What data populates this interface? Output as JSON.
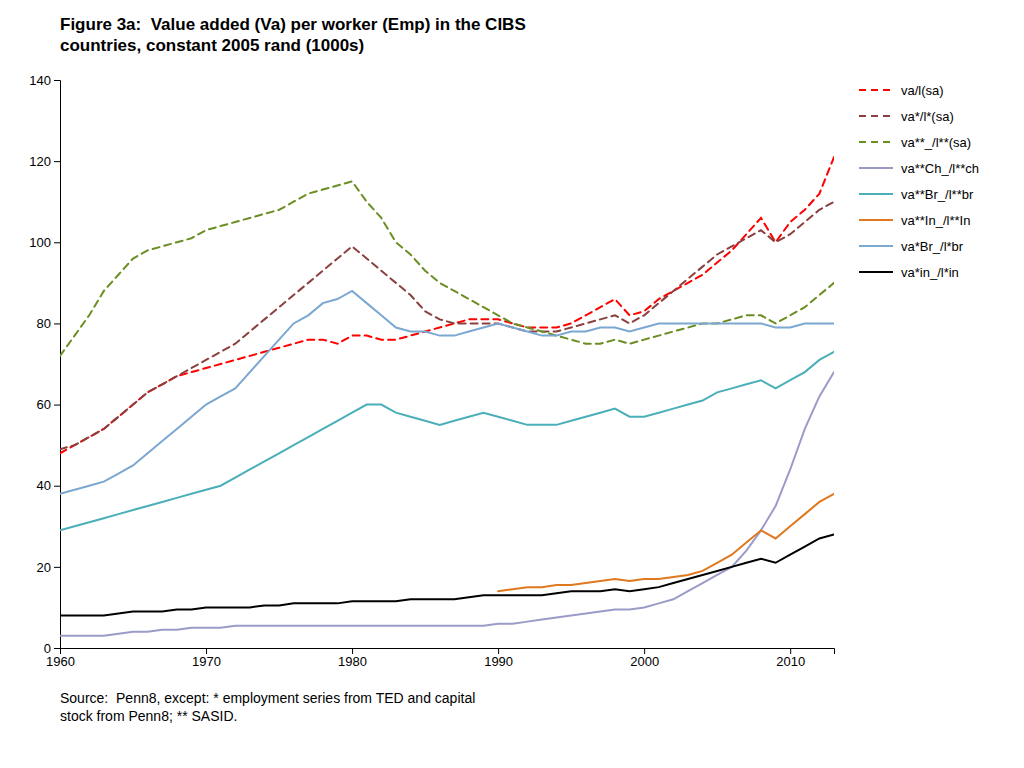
{
  "chart_data": {
    "type": "line",
    "title": "Figure 3a:  Value added (Va) per worker (Emp) in the CIBS\ncountries, constant 2005 rand (1000s)",
    "annotations": [
      "Source:  Penn8, except: * employment series from TED and capital\nstock from Penn8; ** SASID."
    ],
    "x": [
      1960,
      1961,
      1962,
      1963,
      1964,
      1965,
      1966,
      1967,
      1968,
      1969,
      1970,
      1971,
      1972,
      1973,
      1974,
      1975,
      1976,
      1977,
      1978,
      1979,
      1980,
      1981,
      1982,
      1983,
      1984,
      1985,
      1986,
      1987,
      1988,
      1989,
      1990,
      1991,
      1992,
      1993,
      1994,
      1995,
      1996,
      1997,
      1998,
      1999,
      2000,
      2001,
      2002,
      2003,
      2004,
      2005,
      2006,
      2007,
      2008,
      2009,
      2010,
      2011,
      2012,
      2013
    ],
    "series": [
      {
        "name": "va/l(sa)",
        "color": "#FF0000",
        "line_style": "dashed",
        "values": [
          48,
          50,
          52,
          54,
          57,
          60,
          63,
          65,
          67,
          68,
          69,
          70,
          71,
          72,
          73,
          74,
          75,
          76,
          76,
          75,
          77,
          77,
          76,
          76,
          77,
          78,
          79,
          80,
          81,
          81,
          81,
          80,
          79,
          79,
          79,
          80,
          82,
          84,
          86,
          82,
          83,
          86,
          88,
          90,
          92,
          95,
          98,
          102,
          106,
          100,
          105,
          108,
          112,
          121
        ]
      },
      {
        "name": "va*/l*(sa)",
        "color": "#8B4040",
        "line_style": "dashed",
        "values": [
          49,
          50,
          52,
          54,
          57,
          60,
          63,
          65,
          67,
          69,
          71,
          73,
          75,
          78,
          81,
          84,
          87,
          90,
          93,
          96,
          99,
          96,
          93,
          90,
          87,
          83,
          81,
          80,
          80,
          80,
          80,
          79,
          78,
          78,
          78,
          79,
          80,
          81,
          82,
          80,
          82,
          85,
          88,
          91,
          94,
          97,
          99,
          101,
          103,
          100,
          102,
          105,
          108,
          110
        ]
      },
      {
        "name": "va**_/l**(sa)",
        "color": "#6B8E23",
        "line_style": "dashed",
        "values": [
          72,
          77,
          82,
          88,
          92,
          96,
          98,
          99,
          100,
          101,
          103,
          104,
          105,
          106,
          107,
          108,
          110,
          112,
          113,
          114,
          115,
          110,
          106,
          100,
          97,
          93,
          90,
          88,
          86,
          84,
          82,
          80,
          79,
          78,
          77,
          76,
          75,
          75,
          76,
          75,
          76,
          77,
          78,
          79,
          80,
          80,
          81,
          82,
          82,
          80,
          82,
          84,
          87,
          90
        ]
      },
      {
        "name": "va**Ch_/l**ch",
        "color": "#9B9BC8",
        "line_style": "solid",
        "values": [
          3,
          3,
          3,
          3,
          3.5,
          4,
          4,
          4.5,
          4.5,
          5,
          5,
          5,
          5.5,
          5.5,
          5.5,
          5.5,
          5.5,
          5.5,
          5.5,
          5.5,
          5.5,
          5.5,
          5.5,
          5.5,
          5.5,
          5.5,
          5.5,
          5.5,
          5.5,
          5.5,
          6,
          6,
          6.5,
          7,
          7.5,
          8,
          8.5,
          9,
          9.5,
          9.5,
          10,
          11,
          12,
          14,
          16,
          18,
          20,
          24,
          29,
          35,
          44,
          54,
          62,
          68
        ]
      },
      {
        "name": "va**Br_/l**br",
        "color": "#4AAFB8",
        "line_style": "solid",
        "values": [
          29,
          30,
          31,
          32,
          33,
          34,
          35,
          36,
          37,
          38,
          39,
          40,
          42,
          44,
          46,
          48,
          50,
          52,
          54,
          56,
          58,
          60,
          60,
          58,
          57,
          56,
          55,
          56,
          57,
          58,
          57,
          56,
          55,
          55,
          55,
          56,
          57,
          58,
          59,
          57,
          57,
          58,
          59,
          60,
          61,
          63,
          64,
          65,
          66,
          64,
          66,
          68,
          71,
          73
        ]
      },
      {
        "name": "va**In_/l**In",
        "color": "#E07820",
        "line_style": "solid",
        "values": [
          null,
          null,
          null,
          null,
          null,
          null,
          null,
          null,
          null,
          null,
          null,
          null,
          null,
          null,
          null,
          null,
          null,
          null,
          null,
          null,
          null,
          null,
          null,
          null,
          null,
          null,
          null,
          null,
          null,
          null,
          14,
          14.5,
          15,
          15,
          15.5,
          15.5,
          16,
          16.5,
          17,
          16.5,
          17,
          17,
          17.5,
          18,
          19,
          21,
          23,
          26,
          29,
          27,
          30,
          33,
          36,
          38
        ]
      },
      {
        "name": "va*Br_/l*br",
        "color": "#7BA7D0",
        "line_style": "solid",
        "values": [
          38,
          39,
          40,
          41,
          43,
          45,
          48,
          51,
          54,
          57,
          60,
          62,
          64,
          68,
          72,
          76,
          80,
          82,
          85,
          86,
          88,
          85,
          82,
          79,
          78,
          78,
          77,
          77,
          78,
          79,
          80,
          79,
          78,
          77,
          77,
          78,
          78,
          79,
          79,
          78,
          79,
          80,
          80,
          80,
          80,
          80,
          80,
          80,
          80,
          79,
          79,
          80,
          80,
          80
        ]
      },
      {
        "name": "va*in_/l*in",
        "color": "#000000",
        "line_style": "solid",
        "values": [
          8,
          8,
          8,
          8,
          8.5,
          9,
          9,
          9,
          9.5,
          9.5,
          10,
          10,
          10,
          10,
          10.5,
          10.5,
          11,
          11,
          11,
          11,
          11.5,
          11.5,
          11.5,
          11.5,
          12,
          12,
          12,
          12,
          12.5,
          13,
          13,
          13,
          13,
          13,
          13.5,
          14,
          14,
          14,
          14.5,
          14,
          14.5,
          15,
          16,
          17,
          18,
          19,
          20,
          21,
          22,
          21,
          23,
          25,
          27,
          28
        ]
      }
    ],
    "xlim": [
      1960,
      2013
    ],
    "xticks": [
      1960,
      1970,
      1980,
      1990,
      2000,
      2010
    ],
    "ylim": [
      0,
      140
    ],
    "yticks": [
      0,
      20,
      40,
      60,
      80,
      100,
      120,
      140
    ],
    "grid": false,
    "legend": "right"
  }
}
